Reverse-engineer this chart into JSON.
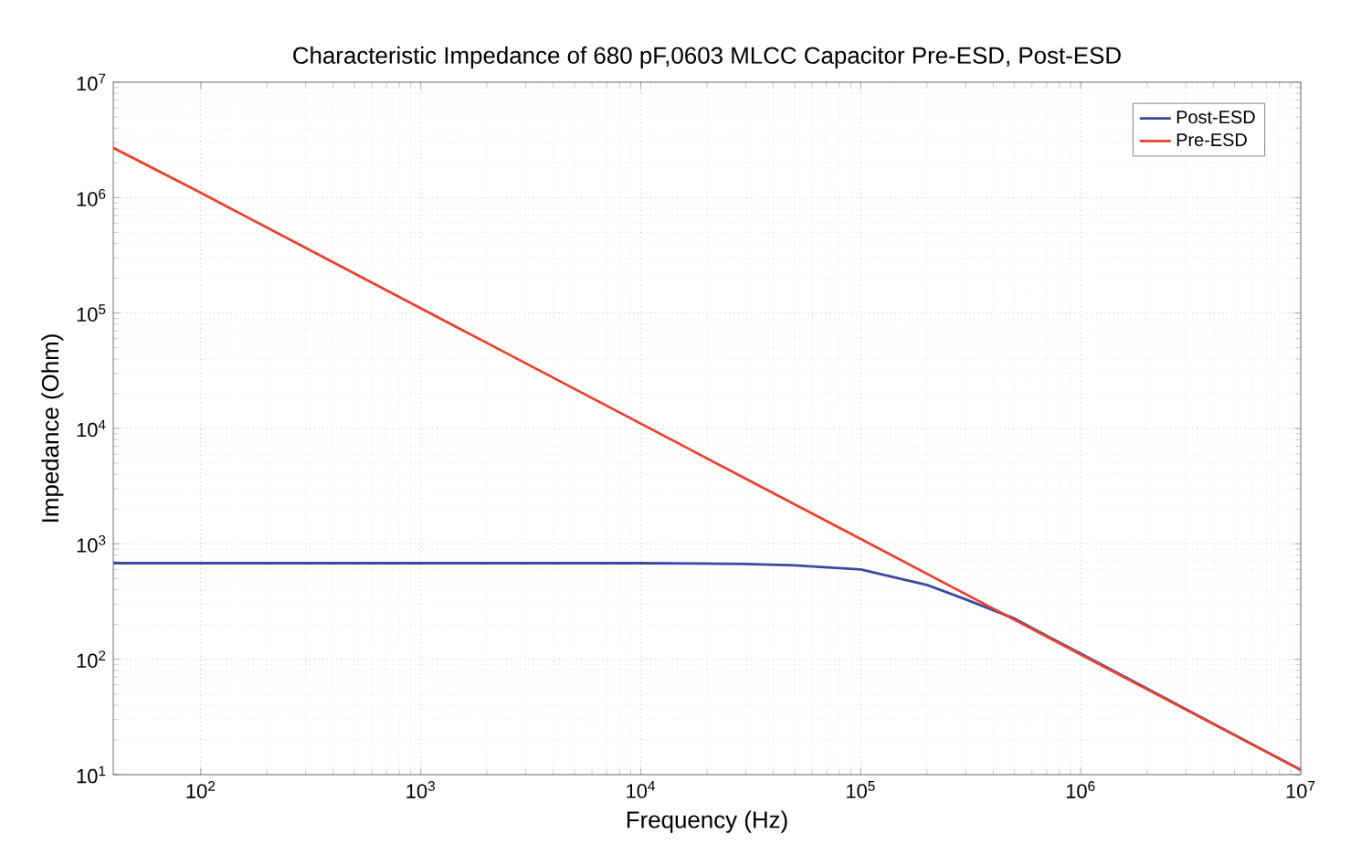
{
  "chart_data": {
    "type": "line",
    "title": "Characteristic Impedance of 680 pF,0603 MLCC Capacitor Pre-ESD, Post-ESD",
    "xlabel": "Frequency (Hz)",
    "ylabel": "Impedance (Ohm)",
    "log": "xy",
    "grid": true,
    "legend": "top right",
    "xlim": [
      40,
      10000000
    ],
    "ylim": [
      10,
      10000000
    ],
    "xticks": [
      {
        "value": 100,
        "label": "10$^{2}$"
      },
      {
        "value": 1000,
        "label": "10$^{3}$"
      },
      {
        "value": 10000,
        "label": "10$^{4}$"
      },
      {
        "value": 100000,
        "label": "10$^{5}$"
      },
      {
        "value": 1000000,
        "label": "10$^{6}$"
      },
      {
        "value": 10000000,
        "label": "10$^{7}$"
      }
    ],
    "yticks": [
      {
        "value": 10,
        "label": "10$^{1}$"
      },
      {
        "value": 100,
        "label": "10$^{2}$"
      },
      {
        "value": 1000,
        "label": "10$^{3}$"
      },
      {
        "value": 10000,
        "label": "10$^{4}$"
      },
      {
        "value": 100000,
        "label": "10$^{5}$"
      },
      {
        "value": 1000000,
        "label": "10$^{6}$"
      },
      {
        "value": 10000000,
        "label": "10$^{7}$"
      }
    ],
    "series": [
      {
        "name": "Post-ESD",
        "color": "#3b4aa0",
        "x": [
          40,
          100,
          1000,
          10000,
          30000,
          50000,
          100000,
          200000,
          300000,
          500000,
          700000,
          1000000,
          10000000
        ],
        "values": [
          680,
          680,
          680,
          680,
          670,
          650,
          600,
          440,
          330,
          225,
          160,
          112,
          11
        ]
      },
      {
        "name": "Pre-ESD",
        "color": "#e8432e",
        "x": [
          40,
          100,
          1000,
          10000,
          100000,
          1000000,
          10000000
        ],
        "values": [
          2700000,
          1100000,
          110000,
          11000,
          1100,
          110,
          11
        ]
      }
    ]
  }
}
